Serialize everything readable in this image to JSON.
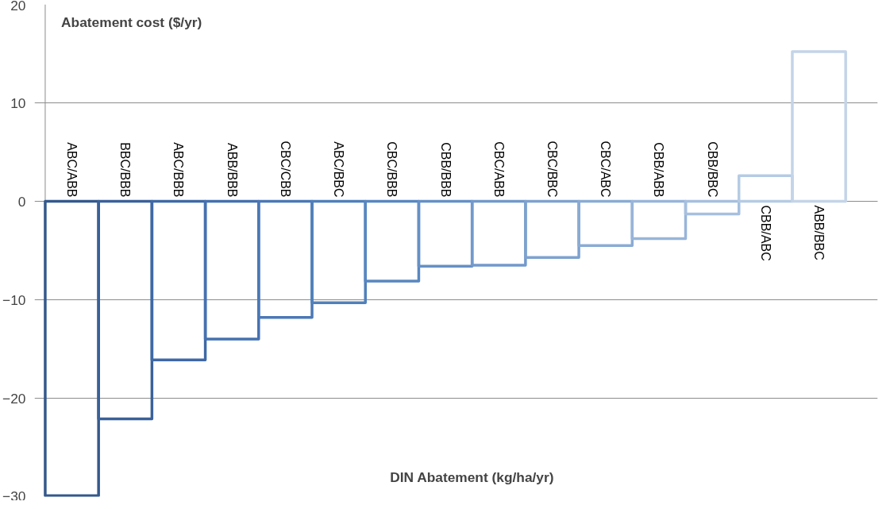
{
  "chart_data": {
    "type": "bar",
    "ylabel": "Abatement cost ($/yr)",
    "xlabel": "DIN Abatement (kg/ha/yr)",
    "categories": [
      "ABC/ABB",
      "BBC/BBB",
      "ABC/BBB",
      "ABB/BBB",
      "CBC/CBB",
      "ABC/BBC",
      "CBC/BBB",
      "CBB/BBB",
      "CBC/ABB",
      "CBC/BBC",
      "CBC/ABC",
      "CBB/ABB",
      "CBB/BBC",
      "CBB/ABC",
      "ABB/BBC"
    ],
    "values": [
      -29.9,
      -22.1,
      -16.1,
      -14,
      -11.8,
      -10.3,
      -8.1,
      -6.6,
      -6.5,
      -5.7,
      -4.5,
      -3.8,
      -1.3,
      2.6,
      15.2
    ],
    "colors": [
      "#34598c",
      "#3a6199",
      "#3f69a6",
      "#4571b0",
      "#4b78b6",
      "#5080bb",
      "#5887c0",
      "#6690c6",
      "#7299cb",
      "#7ea2cf",
      "#8aabd3",
      "#98b5d9",
      "#a6c0de",
      "#b5cbe3",
      "#c4d4e8"
    ],
    "ylim": [
      -30,
      20
    ],
    "yticks": [
      -30,
      -20,
      -10,
      0,
      10,
      20
    ],
    "grid": "y",
    "tick_labels": "y"
  }
}
